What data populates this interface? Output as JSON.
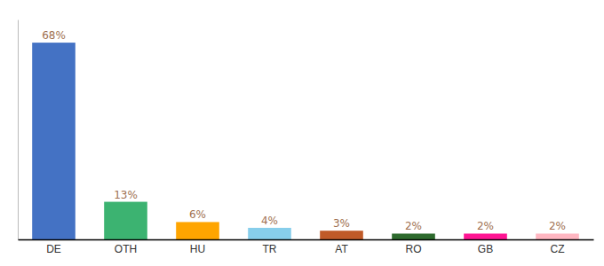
{
  "chart_data": {
    "type": "bar",
    "categories": [
      "DE",
      "OTH",
      "HU",
      "TR",
      "AT",
      "RO",
      "GB",
      "CZ"
    ],
    "values": [
      68,
      13,
      6,
      4,
      3,
      2,
      2,
      2
    ],
    "value_labels": [
      "68%",
      "13%",
      "6%",
      "4%",
      "3%",
      "2%",
      "2%",
      "2%"
    ],
    "colors": [
      "#4472C4",
      "#3CB371",
      "#FFA500",
      "#87CEEB",
      "#C05A28",
      "#2D6A2D",
      "#FF1493",
      "#FFB6C1"
    ],
    "ylim": [
      0,
      76
    ],
    "data_labels": true,
    "tick_labels": "x",
    "grid": false
  }
}
